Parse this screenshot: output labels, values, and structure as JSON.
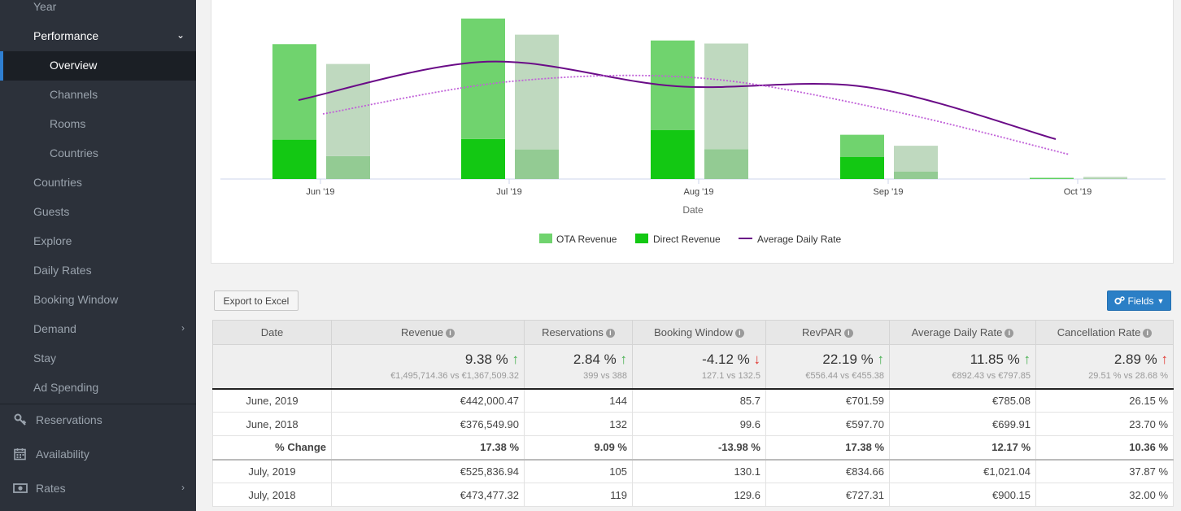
{
  "sidebar": {
    "items": [
      {
        "label": "Year"
      },
      {
        "label": "Performance"
      },
      {
        "label": "Overview"
      },
      {
        "label": "Channels"
      },
      {
        "label": "Rooms"
      },
      {
        "label": "Countries"
      },
      {
        "label": "Countries"
      },
      {
        "label": "Guests"
      },
      {
        "label": "Explore"
      },
      {
        "label": "Daily Rates"
      },
      {
        "label": "Booking Window"
      },
      {
        "label": "Demand"
      },
      {
        "label": "Stay"
      },
      {
        "label": "Ad Spending"
      }
    ],
    "main": [
      {
        "label": "Reservations",
        "icon": "key-icon"
      },
      {
        "label": "Availability",
        "icon": "calendar-icon"
      },
      {
        "label": "Rates",
        "icon": "money-icon"
      }
    ]
  },
  "chart_data": {
    "type": "bar",
    "categories": [
      "Jun '19",
      "Jul '19",
      "Aug '19",
      "Sep '19",
      "Oct '19"
    ],
    "xlabel": "Date",
    "legend": [
      "OTA Revenue",
      "Direct Revenue",
      "Average Daily Rate"
    ],
    "legend_position": "bottom",
    "series": [
      {
        "name": "OTA Revenue",
        "stack": "2019",
        "values": [
          313000,
          395000,
          294000,
          73000,
          3000
        ]
      },
      {
        "name": "Direct Revenue",
        "stack": "2019",
        "values": [
          129000,
          131000,
          160000,
          72000,
          1000
        ]
      },
      {
        "name": "OTA Revenue",
        "stack": "2018",
        "values": [
          302000,
          376000,
          346000,
          85000,
          5000
        ]
      },
      {
        "name": "Direct Revenue",
        "stack": "2018",
        "values": [
          75000,
          97000,
          98000,
          24000,
          2000
        ]
      },
      {
        "name": "Average Daily Rate",
        "type": "line",
        "period": "2019",
        "values": [
          785,
          1021,
          870,
          865,
          545
        ]
      },
      {
        "name": "Average Daily Rate",
        "type": "line",
        "period": "2018",
        "values": [
          700,
          900,
          920,
          720,
          450
        ]
      }
    ],
    "ylim": [
      0,
      560000
    ],
    "colors": {
      "ota_current": "#70d36e",
      "direct_current": "#13c813",
      "ota_previous": "#bfd9bf",
      "direct_previous": "#93cb93",
      "adr": "#6a0b87"
    }
  },
  "toolbar": {
    "export_label": "Export to Excel",
    "fields_label": "Fields"
  },
  "table": {
    "headers": [
      "Date",
      "Revenue",
      "Reservations",
      "Booking Window",
      "RevPAR",
      "Average Daily Rate",
      "Cancellation Rate"
    ],
    "summary": [
      {
        "big": "9.38 %",
        "dir": "up",
        "sub": "€1,495,714.36 vs €1,367,509.32"
      },
      {
        "big": "2.84 %",
        "dir": "up",
        "sub": "399 vs 388"
      },
      {
        "big": "-4.12 %",
        "dir": "down",
        "sub": "127.1 vs 132.5"
      },
      {
        "big": "22.19 %",
        "dir": "up",
        "sub": "€556.44 vs €455.38"
      },
      {
        "big": "11.85 %",
        "dir": "up",
        "sub": "€892.43 vs €797.85"
      },
      {
        "big": "2.89 %",
        "dir": "up-bad",
        "sub": "29.51 % vs 28.68 %"
      }
    ],
    "rows": [
      [
        "June, 2019",
        "€442,000.47",
        "144",
        "85.7",
        "€701.59",
        "€785.08",
        "26.15 %"
      ],
      [
        "June, 2018",
        "€376,549.90",
        "132",
        "99.6",
        "€597.70",
        "€699.91",
        "23.70 %"
      ],
      [
        "% Change",
        "17.38 %",
        "9.09 %",
        "-13.98 %",
        "17.38 %",
        "12.17 %",
        "10.36 %"
      ],
      [
        "July, 2019",
        "€525,836.94",
        "105",
        "130.1",
        "€834.66",
        "€1,021.04",
        "37.87 %"
      ],
      [
        "July, 2018",
        "€473,477.32",
        "119",
        "129.6",
        "€727.31",
        "€900.15",
        "32.00 %"
      ]
    ]
  }
}
